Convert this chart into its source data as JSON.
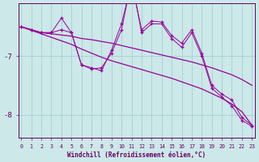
{
  "xlabel": "Windchill (Refroidissement éolien,°C)",
  "bg_color": "#cce8e8",
  "line_color": "#990099",
  "grid_color": "#99cccc",
  "axis_color": "#660066",
  "text_color": "#660066",
  "x": [
    0,
    1,
    2,
    3,
    4,
    5,
    6,
    7,
    8,
    9,
    10,
    11,
    12,
    13,
    14,
    15,
    16,
    17,
    18,
    19,
    20,
    21,
    22,
    23
  ],
  "jagged1": [
    -6.5,
    -6.55,
    -6.6,
    -6.6,
    -6.35,
    -6.6,
    -7.15,
    -7.2,
    -7.25,
    -6.9,
    -6.45,
    -5.75,
    -6.55,
    -6.4,
    -6.42,
    -6.65,
    -6.78,
    -6.55,
    -6.95,
    -7.5,
    -7.65,
    -7.75,
    -8.05,
    -8.18
  ],
  "jagged2": [
    -6.5,
    -6.55,
    -6.6,
    -6.6,
    -6.55,
    -6.6,
    -7.15,
    -7.22,
    -7.2,
    -6.95,
    -6.55,
    -5.7,
    -6.6,
    -6.45,
    -6.45,
    -6.7,
    -6.85,
    -6.6,
    -7.0,
    -7.55,
    -7.7,
    -7.85,
    -8.1,
    -8.2
  ],
  "trend1": [
    -6.5,
    -6.55,
    -6.6,
    -6.62,
    -6.64,
    -6.66,
    -6.7,
    -6.72,
    -6.75,
    -6.78,
    -6.82,
    -6.86,
    -6.9,
    -6.94,
    -6.98,
    -7.02,
    -7.06,
    -7.1,
    -7.15,
    -7.2,
    -7.26,
    -7.32,
    -7.4,
    -7.5
  ],
  "trend2": [
    -6.5,
    -6.56,
    -6.62,
    -6.68,
    -6.74,
    -6.8,
    -6.88,
    -6.95,
    -7.02,
    -7.08,
    -7.13,
    -7.18,
    -7.23,
    -7.28,
    -7.33,
    -7.38,
    -7.44,
    -7.5,
    -7.56,
    -7.64,
    -7.72,
    -7.82,
    -7.95,
    -8.18
  ],
  "ylim": [
    -8.4,
    -6.1
  ],
  "yticks": [
    -8.0,
    -7.0
  ],
  "xlim": [
    -0.3,
    23.3
  ]
}
